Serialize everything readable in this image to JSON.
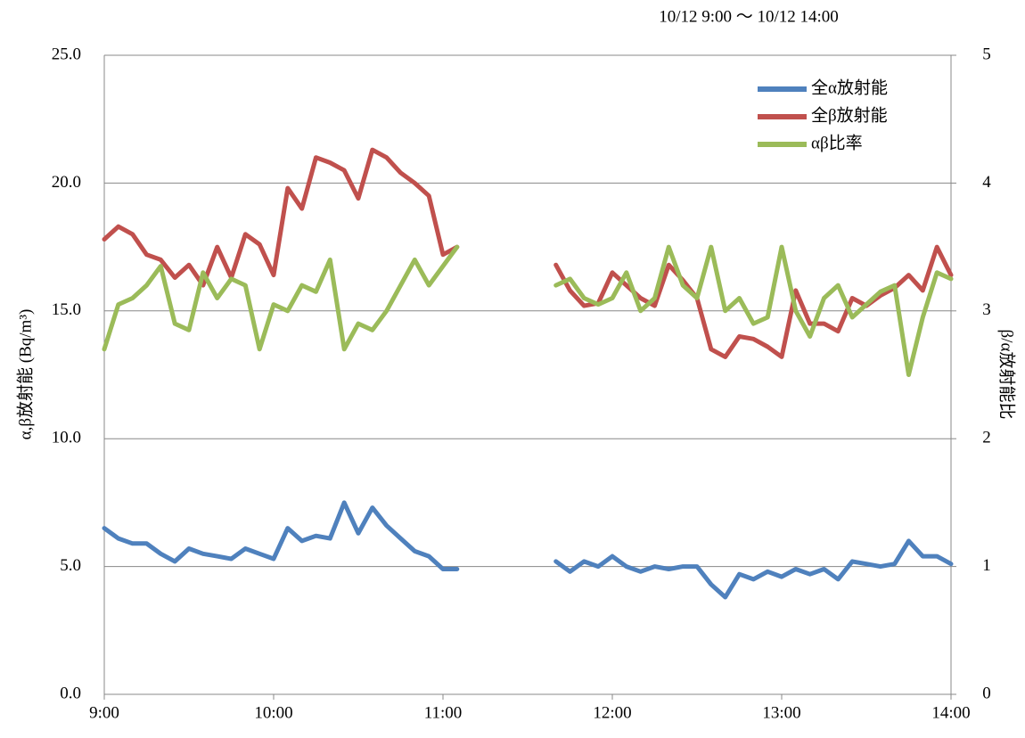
{
  "chart_data": {
    "type": "line",
    "subtitle": "10/12 9:00 ～ 10/12 14:00",
    "ylabel": "α,β放射能 (Bq/m³)",
    "y2label": "β/α放射能比",
    "categories": [
      "9:00",
      null,
      null,
      null,
      null,
      null,
      null,
      null,
      null,
      null,
      null,
      null,
      "10:00",
      null,
      null,
      null,
      null,
      null,
      null,
      null,
      null,
      null,
      null,
      null,
      "11:00",
      null,
      null,
      null,
      null,
      null,
      null,
      null,
      null,
      null,
      null,
      null,
      "12:00",
      null,
      null,
      null,
      null,
      null,
      null,
      null,
      null,
      null,
      null,
      null,
      "13:00",
      null,
      null,
      null,
      null,
      null,
      null,
      null,
      null,
      null,
      null,
      null,
      "14:00"
    ],
    "ylim": [
      0,
      25
    ],
    "yticks": [
      {
        "value": 0,
        "label": "0.0"
      },
      {
        "value": 5,
        "label": "5.0"
      },
      {
        "value": 10,
        "label": "10.0"
      },
      {
        "value": 15,
        "label": "15.0"
      },
      {
        "value": 20,
        "label": "20.0"
      },
      {
        "value": 25,
        "label": "25.0"
      }
    ],
    "y2lim": [
      0,
      5
    ],
    "y2ticks": [
      0,
      1,
      2,
      3,
      4,
      5
    ],
    "grid": true,
    "legend": "upper right",
    "series": [
      {
        "name": "全α放射能",
        "color": "#4f81bd",
        "values": [
          6.5,
          6.1,
          5.9,
          5.9,
          5.5,
          5.2,
          5.7,
          5.5,
          5.4,
          5.3,
          5.7,
          5.5,
          5.3,
          6.5,
          6.0,
          6.2,
          6.1,
          7.5,
          6.3,
          7.3,
          6.6,
          6.1,
          5.6,
          5.4,
          4.9,
          4.9,
          null,
          null,
          null,
          null,
          null,
          null,
          5.2,
          4.8,
          5.2,
          5.0,
          5.4,
          5.0,
          4.8,
          5.0,
          4.9,
          5.0,
          5.0,
          4.3,
          3.8,
          4.7,
          4.5,
          4.8,
          4.6,
          4.9,
          4.7,
          4.9,
          4.5,
          5.2,
          5.1,
          5.0,
          5.1,
          6.0,
          5.4,
          5.4,
          5.1
        ]
      },
      {
        "name": "全β放射能",
        "color": "#c0504d",
        "values": [
          17.8,
          18.3,
          18.0,
          17.2,
          17.0,
          16.3,
          16.8,
          16.0,
          17.5,
          16.3,
          18.0,
          17.6,
          16.4,
          19.8,
          19.0,
          21.0,
          20.8,
          20.5,
          19.4,
          21.3,
          21.0,
          20.4,
          20.0,
          19.5,
          17.2,
          17.5,
          null,
          null,
          null,
          null,
          null,
          null,
          16.8,
          15.8,
          15.2,
          15.3,
          16.5,
          16.0,
          15.5,
          15.2,
          16.8,
          16.2,
          15.5,
          13.5,
          13.2,
          14.0,
          13.9,
          13.6,
          13.2,
          15.8,
          14.5,
          14.5,
          14.2,
          15.5,
          15.2,
          15.6,
          15.9,
          16.4,
          15.8,
          17.5,
          16.4
        ]
      },
      {
        "name": "αβ比率",
        "color": "#9bbb59",
        "axis": "y2",
        "values": [
          2.7,
          3.05,
          3.1,
          3.2,
          3.35,
          2.9,
          2.85,
          3.3,
          3.1,
          3.25,
          3.2,
          2.7,
          3.05,
          3.0,
          3.2,
          3.15,
          3.4,
          2.7,
          2.9,
          2.85,
          3.0,
          3.2,
          3.4,
          3.2,
          3.35,
          3.5,
          null,
          null,
          null,
          null,
          null,
          null,
          3.2,
          3.25,
          3.1,
          3.05,
          3.1,
          3.3,
          3.0,
          3.1,
          3.5,
          3.2,
          3.1,
          3.5,
          3.0,
          3.1,
          2.9,
          2.95,
          3.5,
          3.0,
          2.8,
          3.1,
          3.2,
          2.95,
          3.05,
          3.15,
          3.2,
          2.5,
          2.95,
          3.3,
          3.25
        ]
      }
    ]
  }
}
